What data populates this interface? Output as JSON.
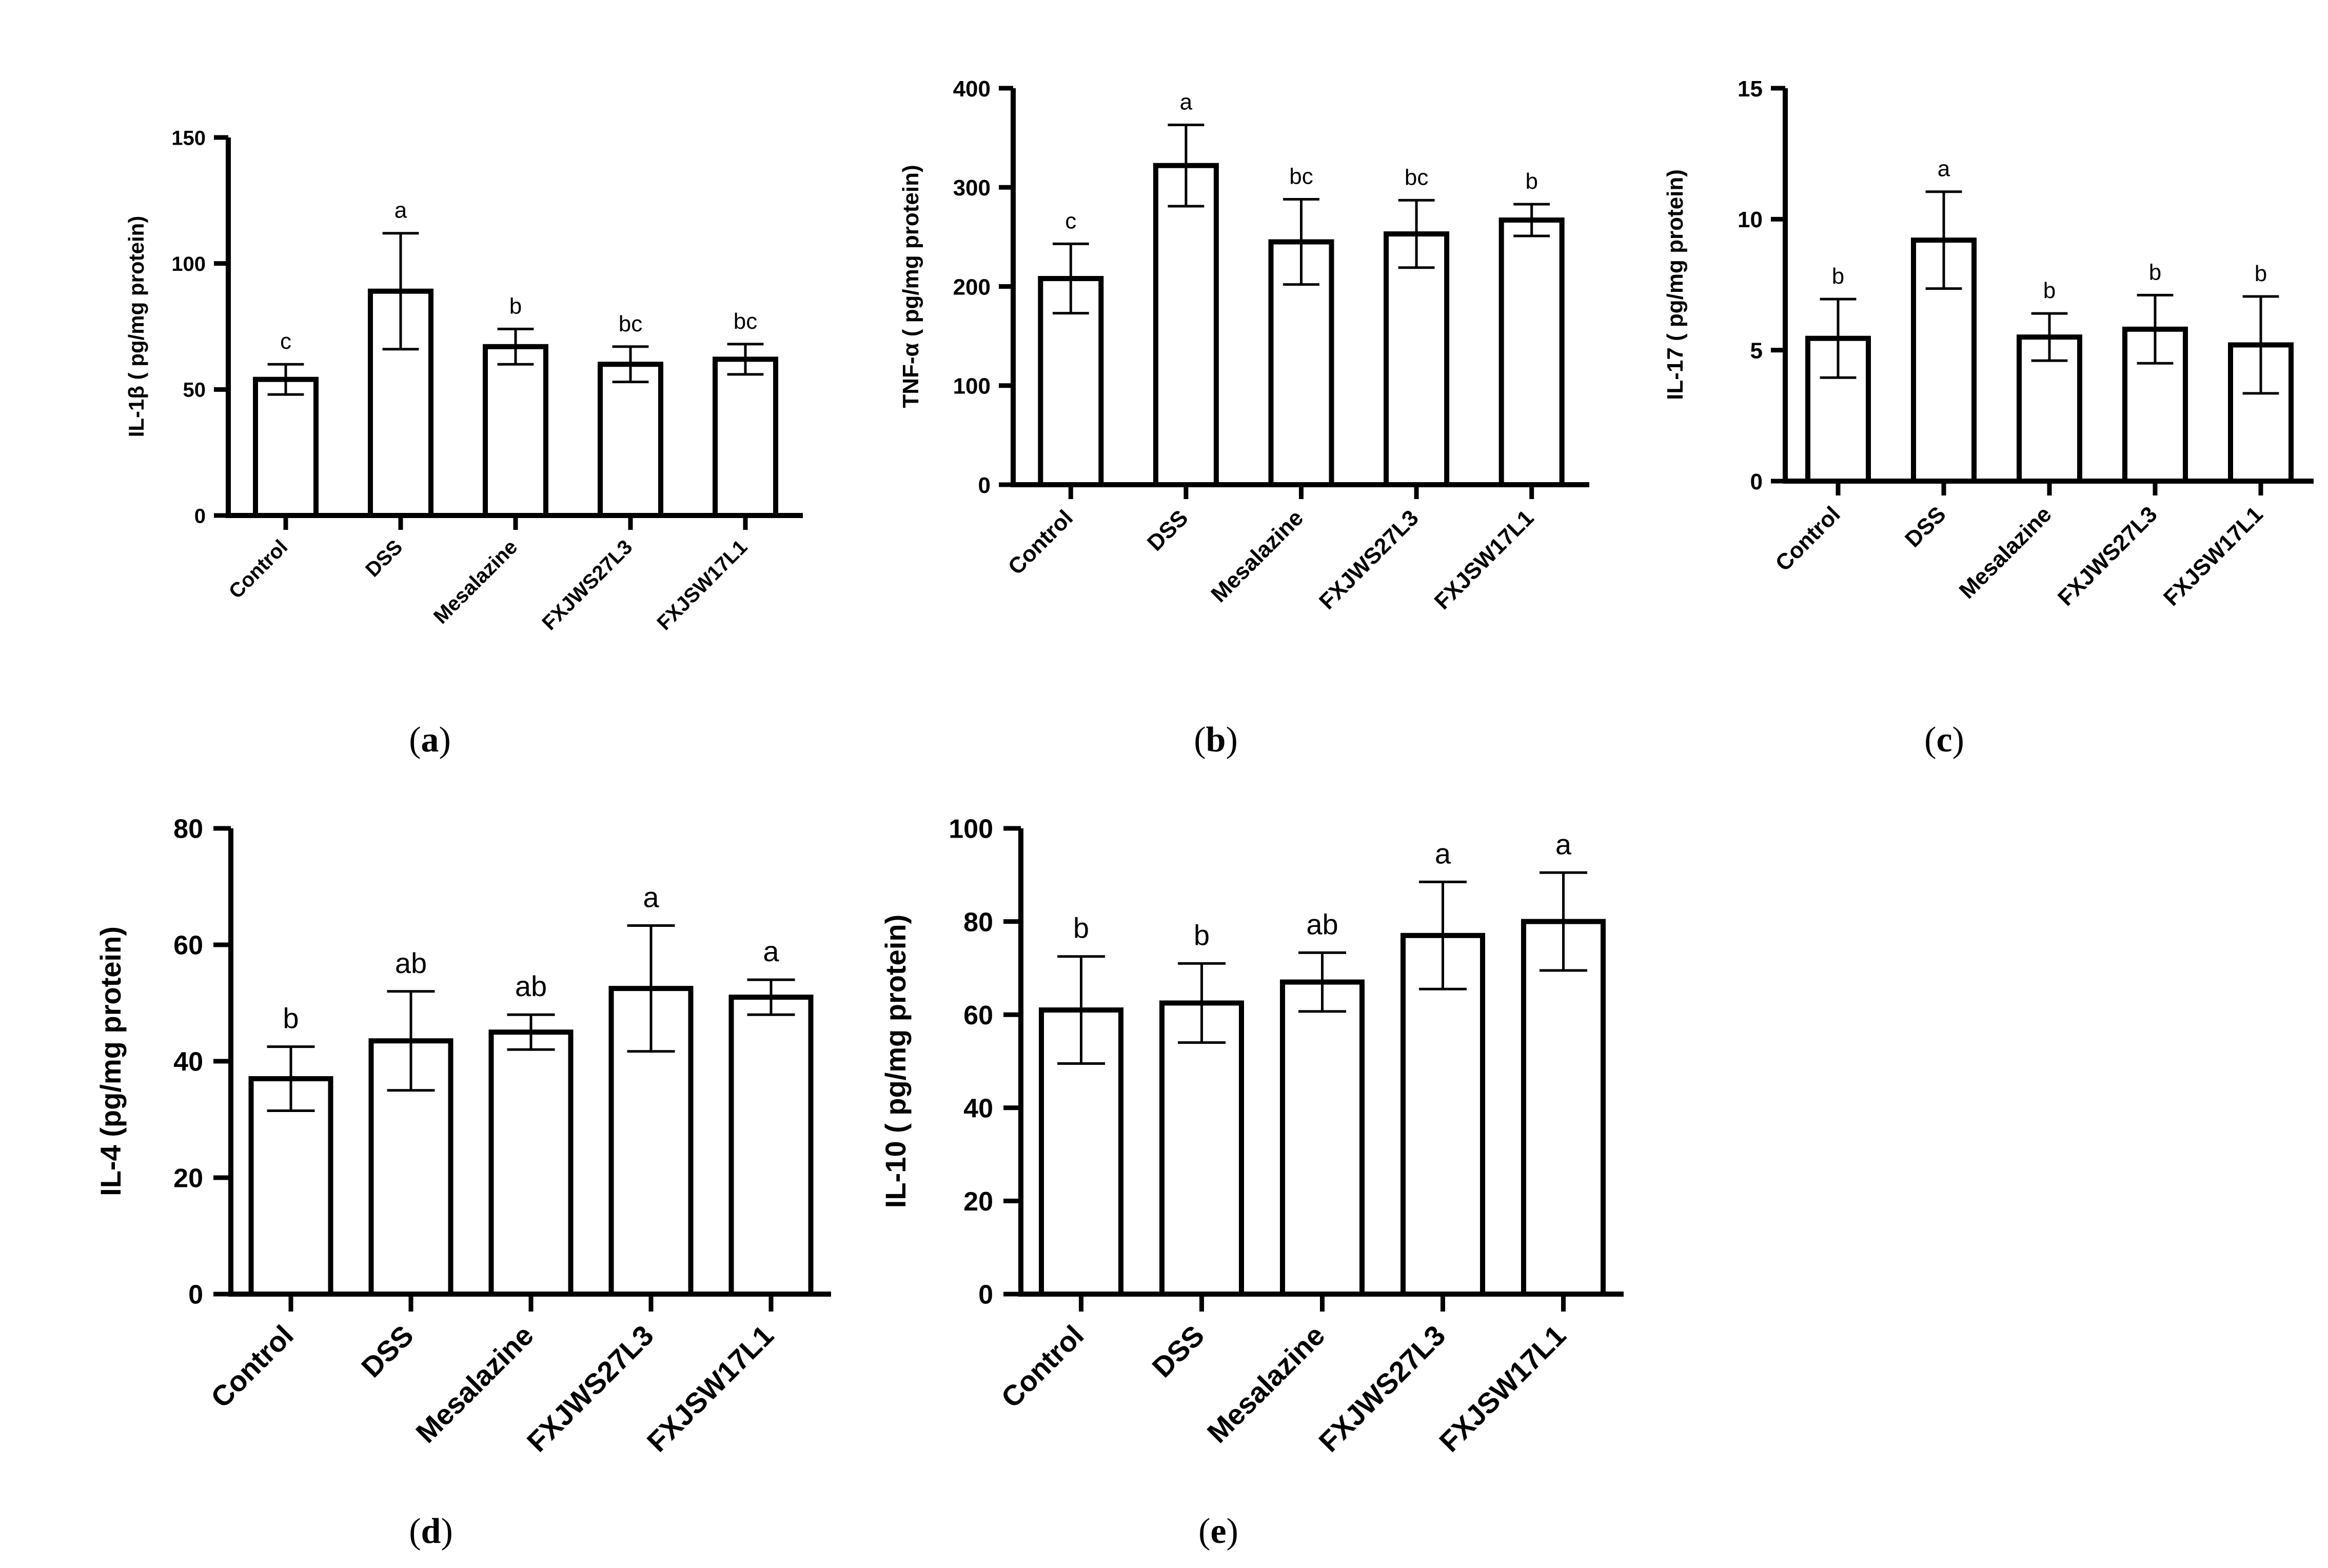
{
  "chart_data": [
    {
      "id": "a",
      "type": "bar",
      "panel_label": "a",
      "ylabel": "IL-1β ( pg/mg protein)",
      "ylim": [
        0,
        150
      ],
      "yticks": [
        0,
        50,
        100,
        150
      ],
      "categories": [
        "Control",
        "DSS",
        "Mesalazine",
        "FXJWS27L3",
        "FXJSW17L1"
      ],
      "values": [
        54,
        89,
        67,
        60,
        62
      ],
      "errors": [
        6,
        23,
        7,
        7,
        6
      ],
      "significance": [
        "c",
        "a",
        "b",
        "bc",
        "bc"
      ]
    },
    {
      "id": "b",
      "type": "bar",
      "panel_label": "b",
      "ylabel": "TNF-α ( pg/mg protein)",
      "ylim": [
        0,
        400
      ],
      "yticks": [
        0,
        100,
        200,
        300,
        400
      ],
      "categories": [
        "Control",
        "DSS",
        "Mesalazine",
        "FXJWS27L3",
        "FXJSW17L1"
      ],
      "values": [
        208,
        322,
        245,
        253,
        267
      ],
      "errors": [
        35,
        41,
        43,
        34,
        16
      ],
      "significance": [
        "c",
        "a",
        "bc",
        "bc",
        "b"
      ]
    },
    {
      "id": "c",
      "type": "bar",
      "panel_label": "c",
      "ylabel": "IL-17 ( pg/mg protein)",
      "ylim": [
        0,
        15
      ],
      "yticks": [
        0,
        5,
        10,
        15
      ],
      "categories": [
        "Control",
        "DSS",
        "Mesalazine",
        "FXJWS27L3",
        "FXJSW17L1"
      ],
      "values": [
        5.45,
        9.2,
        5.5,
        5.8,
        5.2
      ],
      "errors": [
        1.5,
        1.85,
        0.9,
        1.3,
        1.85
      ],
      "significance": [
        "b",
        "a",
        "b",
        "b",
        "b"
      ]
    },
    {
      "id": "d",
      "type": "bar",
      "panel_label": "d",
      "ylabel": "IL-4 (pg/mg protein)",
      "ylim": [
        0,
        80
      ],
      "yticks": [
        0,
        20,
        40,
        60,
        80
      ],
      "categories": [
        "Control",
        "DSS",
        "Mesalazine",
        "FXJWS27L3",
        "FXJSW17L1"
      ],
      "values": [
        37,
        43.5,
        45,
        52.5,
        51
      ],
      "errors": [
        5.5,
        8.5,
        3,
        10.8,
        3
      ],
      "significance": [
        "b",
        "ab",
        "ab",
        "a",
        "a"
      ]
    },
    {
      "id": "e",
      "type": "bar",
      "panel_label": "e",
      "ylabel": "IL-10 ( pg/mg protein)",
      "ylim": [
        0,
        100
      ],
      "yticks": [
        0,
        20,
        40,
        60,
        80,
        100
      ],
      "categories": [
        "Control",
        "DSS",
        "Mesalazine",
        "FXJWS27L3",
        "FXJSW17L1"
      ],
      "values": [
        61,
        62.5,
        67,
        77,
        80
      ],
      "errors": [
        11.5,
        8.5,
        6.3,
        11.5,
        10.5
      ],
      "significance": [
        "b",
        "b",
        "ab",
        "a",
        "a"
      ]
    }
  ]
}
